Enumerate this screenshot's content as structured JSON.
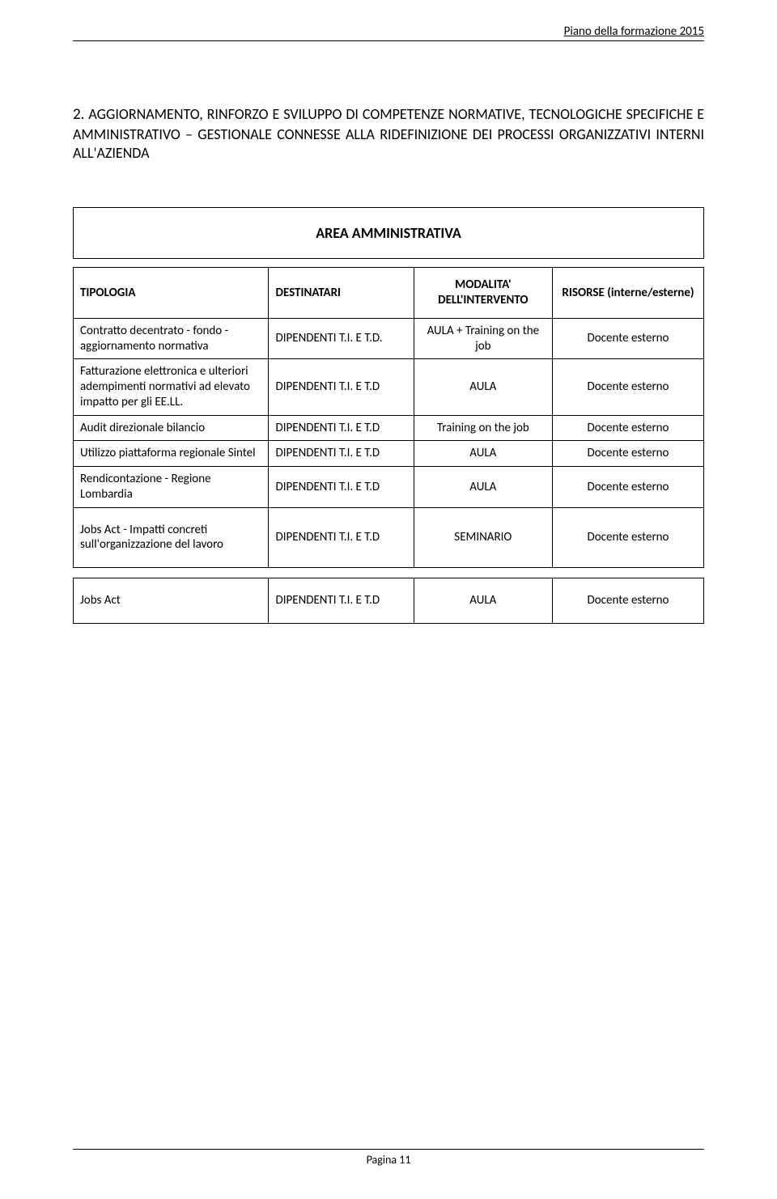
{
  "header": {
    "right_text": "Piano della formazione 2015"
  },
  "section": {
    "number": "2.",
    "title_rest": " AGGIORNAMENTO, RINFORZO E SVILUPPO DI COMPETENZE NORMATIVE, TECNOLOGICHE SPECIFICHE E AMMINISTRATIVO – GESTIONALE CONNESSE ALLA RIDEFINIZIONE DEI PROCESSI ORGANIZZATIVI INTERNI ALL'AZIENDA"
  },
  "area_label": "AREA AMMINISTRATIVA",
  "table": {
    "columns": {
      "tipologia": "TIPOLOGIA",
      "destinatari": "DESTINATARI",
      "modalita": "MODALITA' DELL'INTERVENTO",
      "risorse": "RISORSE (interne/esterne)"
    },
    "rows": [
      {
        "tip": "Contratto decentrato - fondo - aggiornamento normativa",
        "dest": "DIPENDENTI T.I. E T.D.",
        "mod": "AULA + Training on the job",
        "ris": "Docente esterno"
      },
      {
        "tip": "Fatturazione elettronica e ulteriori adempimenti normativi ad elevato impatto per gli EE.LL.",
        "dest": "DIPENDENTI T.I. E T.D",
        "mod": "AULA",
        "ris": "Docente esterno"
      },
      {
        "tip": "Audit direzionale bilancio",
        "dest": "DIPENDENTI T.I. E T.D",
        "mod": "Training on the job",
        "ris": "Docente esterno"
      },
      {
        "tip": "Utilizzo piattaforma regionale Sintel",
        "dest": "DIPENDENTI T.I. E T.D",
        "mod": "AULA",
        "ris": "Docente esterno"
      },
      {
        "tip": "Rendicontazione - Regione Lombardia",
        "dest": "DIPENDENTI T.I. E T.D",
        "mod": "AULA",
        "ris": "Docente esterno"
      },
      {
        "tip": "Jobs Act - Impatti concreti sull'organizzazione del lavoro",
        "dest": "DIPENDENTI T.I. E T.D",
        "mod": "SEMINARIO",
        "ris": "Docente esterno"
      }
    ],
    "last_row": {
      "tip": "Jobs Act",
      "dest": "DIPENDENTI T.I. E T.D",
      "mod": "AULA",
      "ris": "Docente esterno"
    }
  },
  "footer": {
    "page_label": "Pagina 11"
  }
}
